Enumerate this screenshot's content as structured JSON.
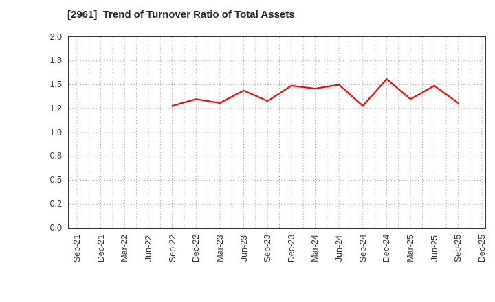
{
  "chart_data": {
    "type": "line",
    "title": "[2961]  Trend of Turnover Ratio of Total Assets",
    "categories": [
      "Sep-21",
      "Dec-21",
      "Mar-22",
      "Jun-22",
      "Sep-22",
      "Dec-22",
      "Mar-23",
      "Jun-23",
      "Sep-23",
      "Dec-23",
      "Mar-24",
      "Jun-24",
      "Sep-24",
      "Dec-24",
      "Mar-25",
      "Jun-25",
      "Sep-25",
      "Dec-25"
    ],
    "values": [
      null,
      null,
      null,
      null,
      1.28,
      1.35,
      1.31,
      1.44,
      1.33,
      1.49,
      1.46,
      1.5,
      1.28,
      1.56,
      1.35,
      1.49,
      1.31,
      null
    ],
    "xlabel": "",
    "ylabel": "",
    "ylim": [
      0.0,
      2.0
    ],
    "y_tick_values": [
      0.0,
      0.25,
      0.5,
      0.75,
      1.0,
      1.25,
      1.5,
      1.75,
      2.0
    ],
    "y_tick_labels": [
      "0.0",
      "0.2",
      "0.5",
      "0.8",
      "1.0",
      "1.2",
      "1.5",
      "1.8",
      "2.0"
    ],
    "grid": "dotted gridlines on both axes, vertical minor gridlines at category midpoints",
    "legend_position": "none",
    "line_color": "#ff0000",
    "line_width": 2.2
  },
  "colors": {
    "background": "#ffffff",
    "frame": "#333333",
    "grid": "#a8a8a8",
    "tick_text": "#333333",
    "title_text": "#262626"
  }
}
